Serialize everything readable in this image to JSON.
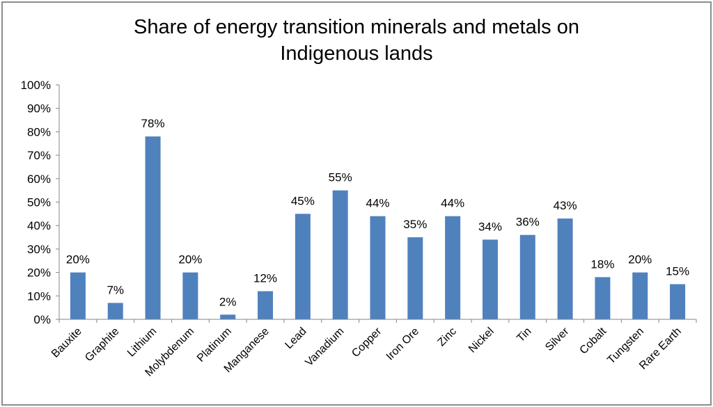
{
  "chart_data": {
    "type": "bar",
    "title_lines": [
      "Share of energy transition minerals and metals on",
      "Indigenous lands"
    ],
    "xlabel": "",
    "ylabel": "",
    "categories": [
      "Bauxite",
      "Graphite",
      "Lithium",
      "Molybdenum",
      "Platinum",
      "Manganese",
      "Lead",
      "Vanadium",
      "Copper",
      "Iron Ore",
      "Zinc",
      "Nickel",
      "Tin",
      "Silver",
      "Cobalt",
      "Tungsten",
      "Rare Earth"
    ],
    "values": [
      20,
      7,
      78,
      20,
      2,
      12,
      45,
      55,
      44,
      35,
      44,
      34,
      36,
      43,
      18,
      20,
      15
    ],
    "data_labels": [
      "20%",
      "7%",
      "78%",
      "20%",
      "2%",
      "12%",
      "45%",
      "55%",
      "44%",
      "35%",
      "44%",
      "34%",
      "36%",
      "43%",
      "18%",
      "20%",
      "15%"
    ],
    "ylim": [
      0,
      100
    ],
    "yticks": [
      0,
      10,
      20,
      30,
      40,
      50,
      60,
      70,
      80,
      90,
      100
    ],
    "ytick_labels": [
      "0%",
      "10%",
      "20%",
      "30%",
      "40%",
      "50%",
      "60%",
      "70%",
      "80%",
      "90%",
      "100%"
    ],
    "grid": false,
    "legend": "none",
    "bar_color": "#4f81bd",
    "axis_color": "#868686"
  }
}
